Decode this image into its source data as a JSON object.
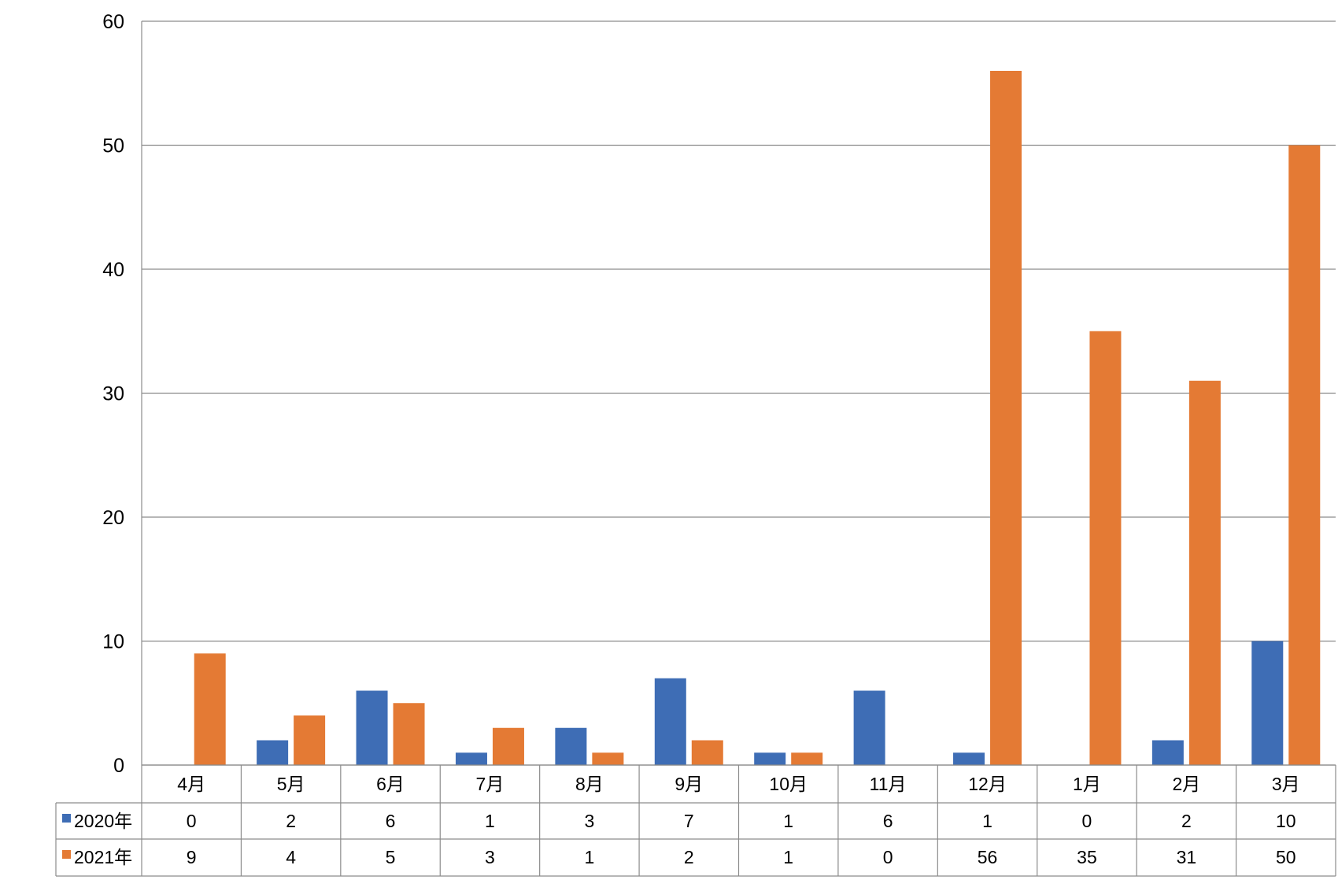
{
  "chart_data": {
    "type": "bar",
    "categories": [
      "4月",
      "5月",
      "6月",
      "7月",
      "8月",
      "9月",
      "10月",
      "11月",
      "12月",
      "1月",
      "2月",
      "3月"
    ],
    "series": [
      {
        "name": "2020年",
        "color": "#3e6db5",
        "values": [
          0,
          2,
          6,
          1,
          3,
          7,
          1,
          6,
          1,
          0,
          2,
          10
        ]
      },
      {
        "name": "2021年",
        "color": "#e47a34",
        "values": [
          9,
          4,
          5,
          3,
          1,
          2,
          1,
          0,
          56,
          35,
          31,
          50
        ]
      }
    ],
    "title": "",
    "xlabel": "",
    "ylabel": "",
    "ylim": [
      0,
      60
    ],
    "yticks": [
      0,
      10,
      20,
      30,
      40,
      50,
      60
    ],
    "grid": true,
    "legend": "data-table-left",
    "data_table": true
  }
}
